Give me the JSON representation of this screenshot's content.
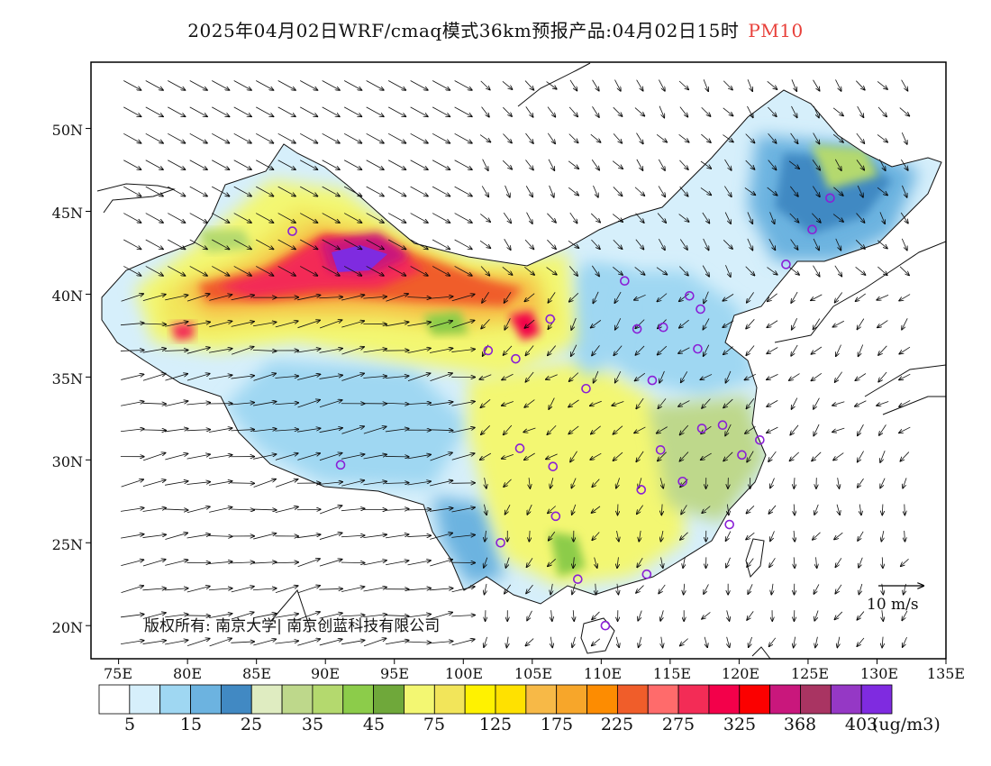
{
  "title": {
    "main": "2025年04月02日WRF/cmaq模式36km预报产品:04月02日15时",
    "variable": "PM10"
  },
  "axes": {
    "lat_labels": [
      "50N",
      "45N",
      "40N",
      "35N",
      "30N",
      "25N",
      "20N"
    ],
    "lon_labels": [
      "75E",
      "80E",
      "85E",
      "90E",
      "95E",
      "100E",
      "105E",
      "110E",
      "115E",
      "120E",
      "125E",
      "130E",
      "135E"
    ]
  },
  "colorbar": {
    "colors": [
      "#ffffff",
      "#d6effb",
      "#9fd7f2",
      "#6cb3e0",
      "#4189c3",
      "#dfecc1",
      "#bed88b",
      "#b4d96e",
      "#8ccc4a",
      "#6fa83a",
      "#f3f772",
      "#f2e55a",
      "#fff200",
      "#ffe100",
      "#f7b947",
      "#f7a62a",
      "#fd8c01",
      "#f05d2a",
      "#ff6b6b",
      "#f32c56",
      "#f3004a",
      "#fb0000",
      "#c9177c",
      "#a93462",
      "#9538c5",
      "#7f2be0"
    ],
    "labels": [
      "5",
      "15",
      "25",
      "35",
      "45",
      "75",
      "125",
      "175",
      "225",
      "275",
      "325",
      "368",
      "403"
    ],
    "unit": "(ug/m3)"
  },
  "reference_vector": {
    "label": "10 m/s"
  },
  "copyright": "版权所有: 南京大学| 南京创蓝科技有限公司",
  "stations": [
    {
      "lon": 87.6,
      "lat": 43.8
    },
    {
      "lon": 91.1,
      "lat": 29.7
    },
    {
      "lon": 101.8,
      "lat": 36.6
    },
    {
      "lon": 103.8,
      "lat": 36.1
    },
    {
      "lon": 106.3,
      "lat": 38.5
    },
    {
      "lon": 104.1,
      "lat": 30.7
    },
    {
      "lon": 106.5,
      "lat": 29.6
    },
    {
      "lon": 102.7,
      "lat": 25.0
    },
    {
      "lon": 106.7,
      "lat": 26.6
    },
    {
      "lon": 108.3,
      "lat": 22.8
    },
    {
      "lon": 110.3,
      "lat": 20.0
    },
    {
      "lon": 108.9,
      "lat": 34.3
    },
    {
      "lon": 111.7,
      "lat": 40.8
    },
    {
      "lon": 112.6,
      "lat": 37.9
    },
    {
      "lon": 113.7,
      "lat": 34.8
    },
    {
      "lon": 114.5,
      "lat": 38.0
    },
    {
      "lon": 116.4,
      "lat": 39.9
    },
    {
      "lon": 117.2,
      "lat": 39.1
    },
    {
      "lon": 117.0,
      "lat": 36.7
    },
    {
      "lon": 117.3,
      "lat": 31.9
    },
    {
      "lon": 118.8,
      "lat": 32.1
    },
    {
      "lon": 120.2,
      "lat": 30.3
    },
    {
      "lon": 121.5,
      "lat": 31.2
    },
    {
      "lon": 119.3,
      "lat": 26.1
    },
    {
      "lon": 115.9,
      "lat": 28.7
    },
    {
      "lon": 112.9,
      "lat": 28.2
    },
    {
      "lon": 114.3,
      "lat": 30.6
    },
    {
      "lon": 113.3,
      "lat": 23.1
    },
    {
      "lon": 123.4,
      "lat": 41.8
    },
    {
      "lon": 125.3,
      "lat": 43.9
    },
    {
      "lon": 126.6,
      "lat": 45.8
    }
  ]
}
